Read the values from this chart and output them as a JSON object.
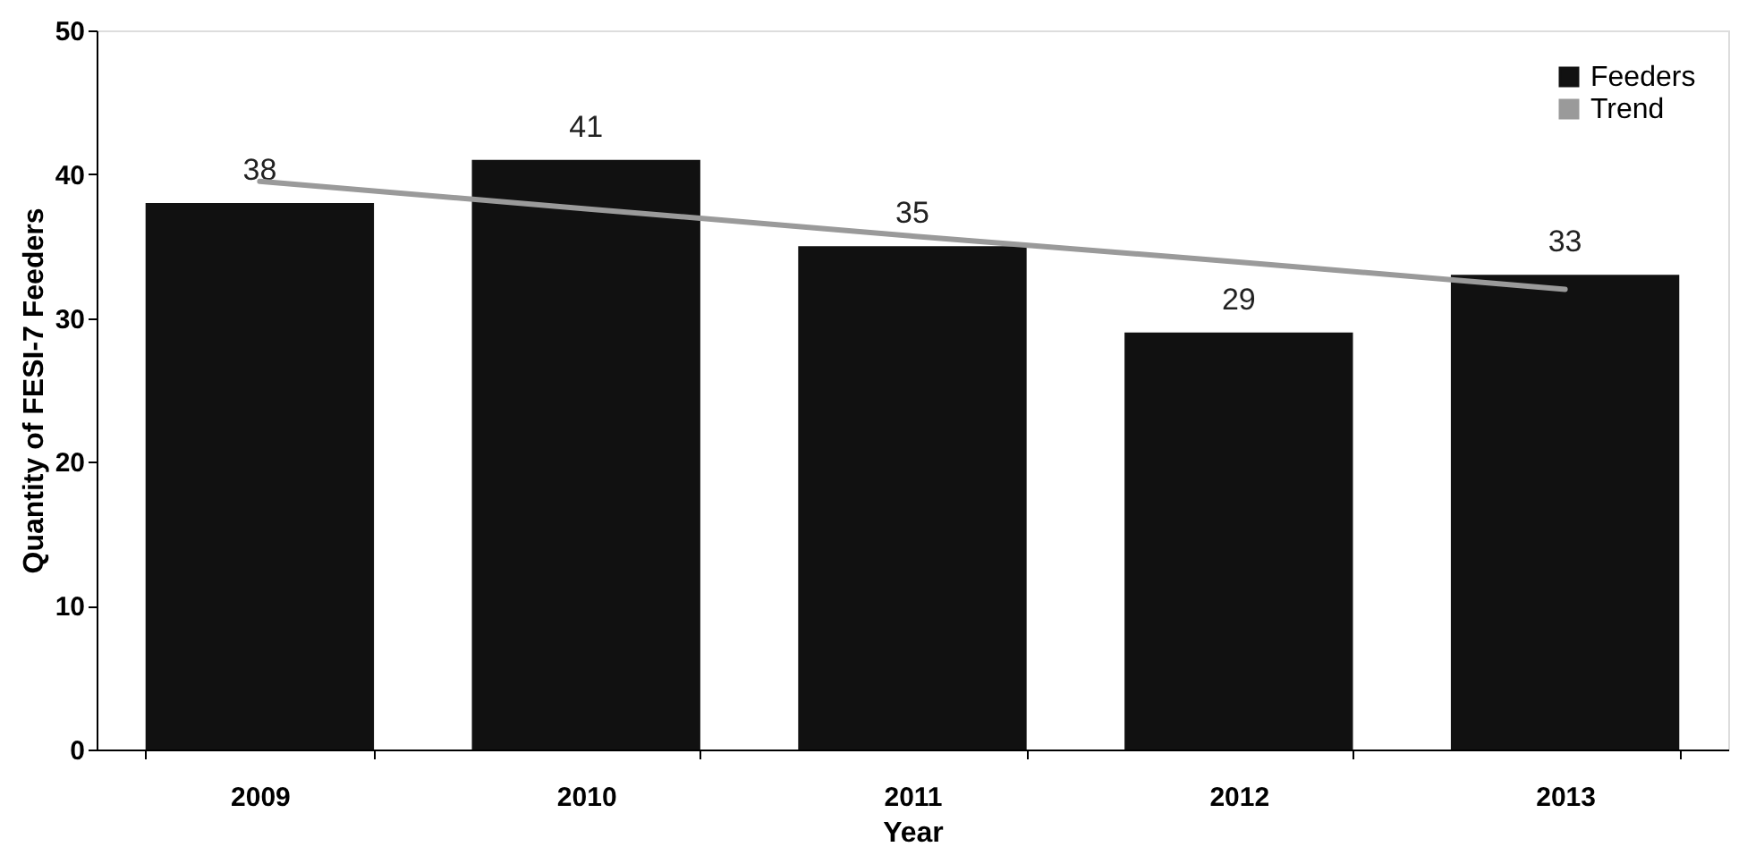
{
  "chart_data": {
    "type": "bar",
    "xlabel": "Year",
    "ylabel": "Quantity of FESI-7 Feeders",
    "categories": [
      "2009",
      "2010",
      "2011",
      "2012",
      "2013"
    ],
    "series": [
      {
        "name": "Feeders",
        "color": "#111111",
        "values": [
          38,
          41,
          35,
          29,
          33
        ],
        "value_labels": [
          "38",
          "41",
          "35",
          "29",
          "33"
        ]
      },
      {
        "name": "Trend",
        "type": "line",
        "color": "#9a9a9a",
        "values": [
          39.5,
          37.6,
          35.7,
          33.9,
          32
        ]
      }
    ],
    "ylim": [
      0,
      50
    ],
    "yticks": [
      0,
      10,
      20,
      30,
      40,
      50
    ],
    "grid": false,
    "legend": "top right"
  }
}
